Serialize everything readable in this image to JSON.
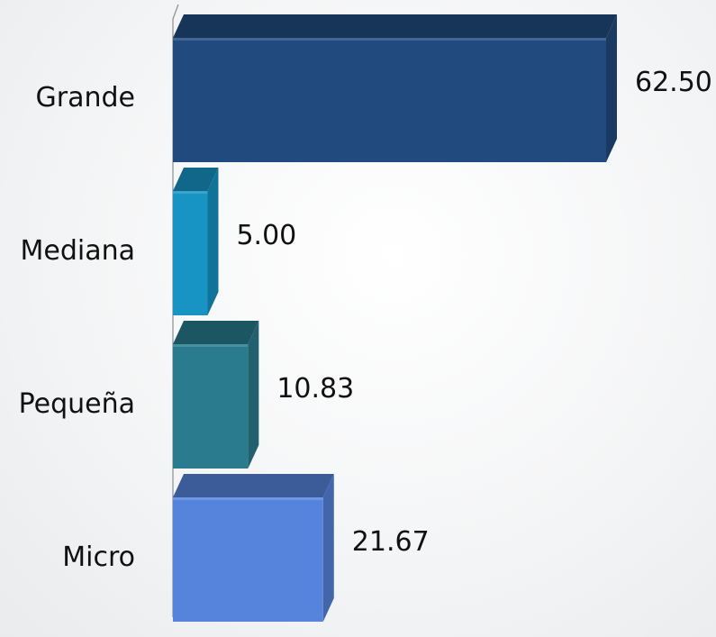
{
  "chart_data": {
    "type": "bar",
    "orientation": "horizontal",
    "style": "3d",
    "categories": [
      "Grande",
      "Mediana",
      "Pequeña",
      "Micro"
    ],
    "values": [
      62.5,
      5.0,
      10.83,
      21.67
    ],
    "value_labels": [
      "62.50",
      "5.00",
      "10.83",
      "21.67"
    ],
    "colors": [
      "#214a7f",
      "#1793c4",
      "#2a7b8e",
      "#5683db"
    ],
    "title": "",
    "xlabel": "",
    "ylabel": "",
    "xlim": [
      0,
      62.5
    ],
    "grid": false,
    "legend": "none"
  }
}
